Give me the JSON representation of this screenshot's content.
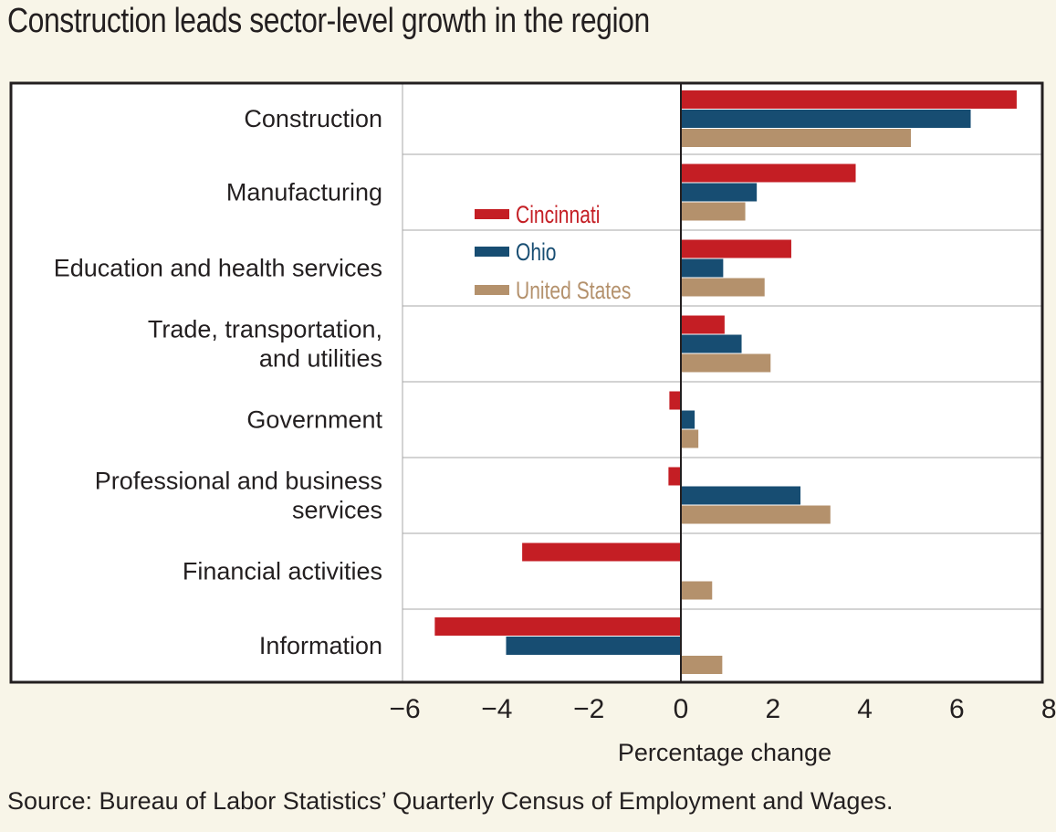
{
  "title": "Construction leads sector-level growth in the region",
  "source": "Source: Bureau of Labor Statistics’ Quarterly Census of Employment and Wages.",
  "colors": {
    "cincinnati": "#c41e24",
    "ohio": "#174d72",
    "us": "#b4916c"
  },
  "chart_data": {
    "type": "bar",
    "orientation": "horizontal",
    "title": "Construction leads sector-level growth in the region",
    "xlabel": "Percentage change",
    "ylabel": "",
    "xlim": [
      -6,
      8
    ],
    "xticks": [
      -6,
      -4,
      -2,
      0,
      2,
      4,
      6,
      8
    ],
    "xtick_labels": [
      "−6",
      "−4",
      "−2",
      "0",
      "2",
      "4",
      "6",
      "8"
    ],
    "categories": [
      [
        "Construction"
      ],
      [
        "Manufacturing"
      ],
      [
        "Education and health services"
      ],
      [
        "Trade, transportation,",
        "and utilities"
      ],
      [
        "Government"
      ],
      [
        "Professional and business",
        "services"
      ],
      [
        "Financial activities"
      ],
      [
        "Information"
      ]
    ],
    "series": [
      {
        "name": "Cincinnati",
        "color": "#c41e24",
        "values": [
          7.3,
          3.8,
          2.4,
          0.95,
          -0.25,
          -0.27,
          -3.45,
          -5.35
        ]
      },
      {
        "name": "Ohio",
        "color": "#174d72",
        "values": [
          6.3,
          1.65,
          0.92,
          1.32,
          0.3,
          2.6,
          0.0,
          -3.8
        ]
      },
      {
        "name": "United States",
        "color": "#b4916c",
        "values": [
          5.0,
          1.4,
          1.82,
          1.95,
          0.38,
          3.25,
          0.68,
          0.9
        ]
      }
    ],
    "legend": "upper-left inside plot",
    "grid": false
  }
}
